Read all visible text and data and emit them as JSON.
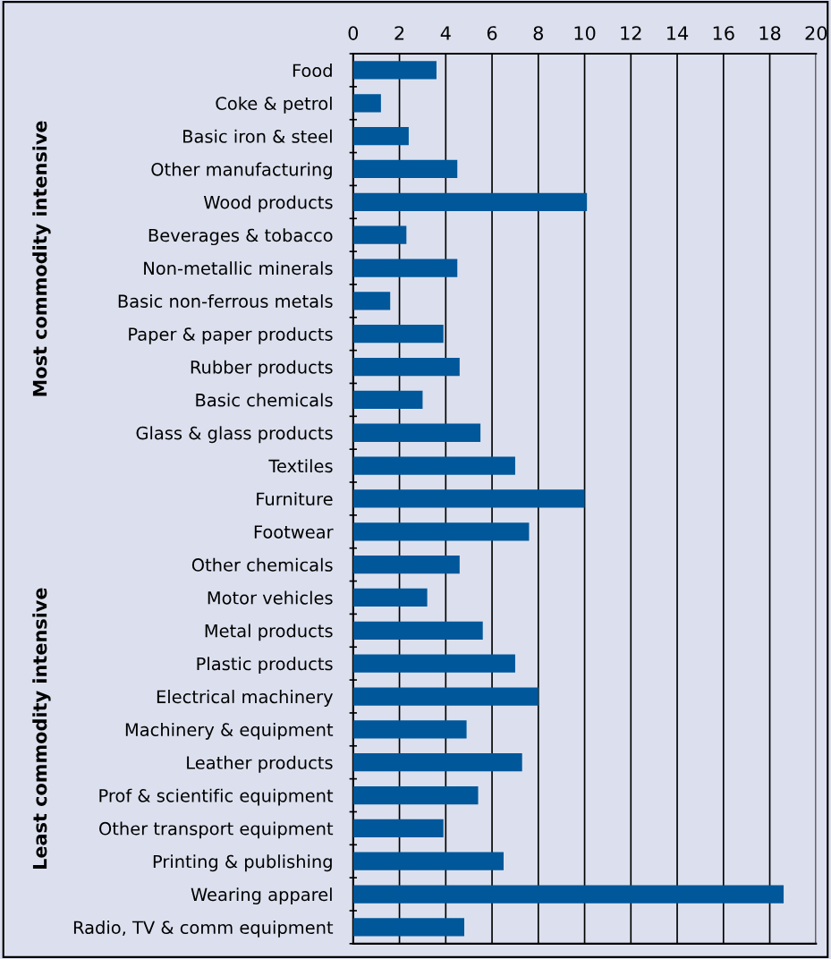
{
  "chart_data": {
    "type": "bar",
    "orientation": "horizontal",
    "categories": [
      "Food",
      "Coke & petrol",
      "Basic iron & steel",
      "Other manufacturing",
      "Wood products",
      "Beverages & tobacco",
      "Non-metallic minerals",
      "Basic non-ferrous metals",
      "Paper & paper products",
      "Rubber products",
      "Basic chemicals",
      "Glass & glass products",
      "Textiles",
      "Furniture",
      "Footwear",
      "Other chemicals",
      "Motor vehicles",
      "Metal products",
      "Plastic products",
      "Electrical machinery",
      "Machinery & equipment",
      "Leather products",
      "Prof & scientific equipment",
      "Other transport equipment",
      "Printing & publishing",
      "Wearing apparel",
      "Radio, TV & comm equipment"
    ],
    "values": [
      3.6,
      1.2,
      2.4,
      4.5,
      10.1,
      2.3,
      4.5,
      1.6,
      3.9,
      4.6,
      3.0,
      5.5,
      7.0,
      10.0,
      7.6,
      4.6,
      3.2,
      5.6,
      7.0,
      8.0,
      4.9,
      7.3,
      5.4,
      3.9,
      6.5,
      18.6,
      4.8
    ],
    "color": "#00579a",
    "xlim": [
      0,
      20
    ],
    "xticks": [
      0,
      2,
      4,
      6,
      8,
      10,
      12,
      14,
      16,
      18,
      20
    ],
    "grid": "x",
    "annotations": [
      "Most commodity intensive",
      "Least commodity intensive"
    ]
  }
}
